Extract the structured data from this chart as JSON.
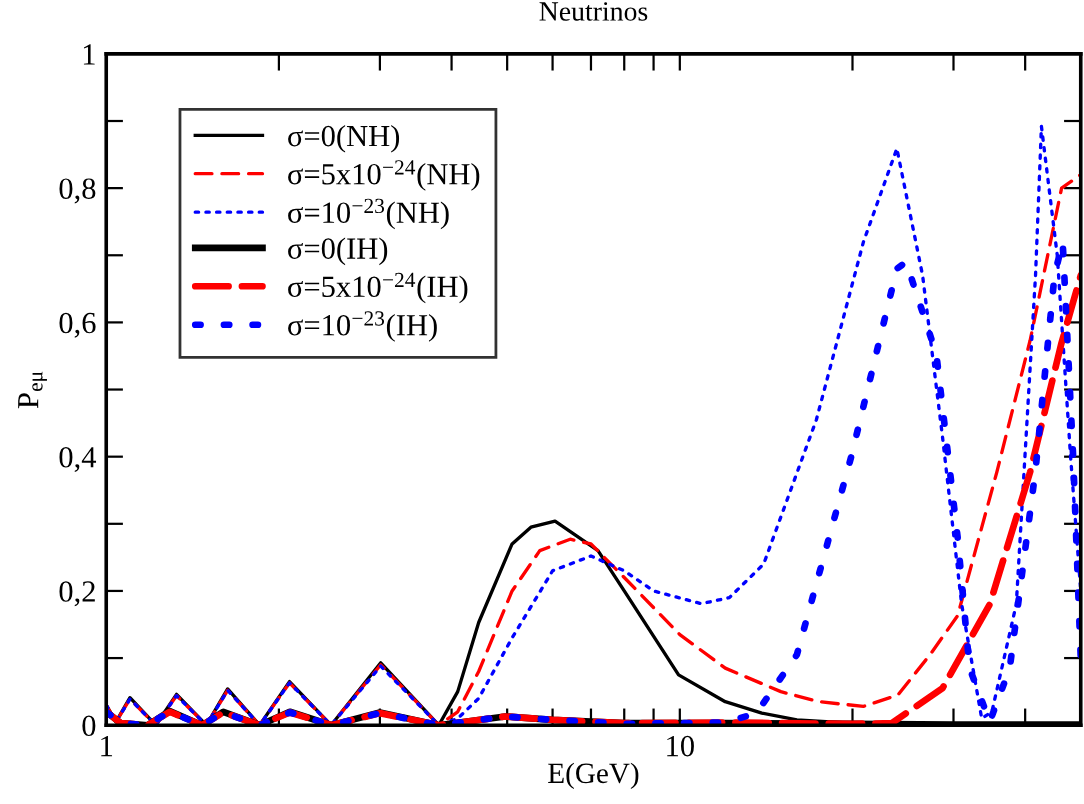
{
  "chart_data": {
    "type": "line",
    "title": "Neutrinos",
    "xlabel": "E(GeV)",
    "ylabel": "P$_{eμ}$",
    "log": "x",
    "xlim": [
      1,
      50
    ],
    "ylim": [
      0,
      1
    ],
    "xticks": [
      1,
      {
        "value": 2,
        "label": null
      },
      {
        "value": 3,
        "label": null
      },
      {
        "value": 4,
        "label": null
      },
      {
        "value": 5,
        "label": null
      },
      {
        "value": 6,
        "label": null
      },
      {
        "value": 7,
        "label": null
      },
      {
        "value": 8,
        "label": null
      },
      {
        "value": 9,
        "label": null
      },
      10,
      {
        "value": 20,
        "label": null
      },
      {
        "value": 30,
        "label": null
      },
      {
        "value": 40,
        "label": null
      }
    ],
    "yticks": [
      0,
      {
        "value": 0.1,
        "label": null
      },
      {
        "value": 0.2,
        "label": "0,2"
      },
      {
        "value": 0.3,
        "label": null
      },
      {
        "value": 0.4,
        "label": "0,4"
      },
      {
        "value": 0.5,
        "label": null
      },
      {
        "value": 0.6,
        "label": "0,6"
      },
      {
        "value": 0.7,
        "label": null
      },
      {
        "value": 0.8,
        "label": "0,8"
      },
      {
        "value": 0.9,
        "label": null
      },
      1
    ],
    "grid": false,
    "legend": "top left",
    "marker": "none",
    "series": [
      {
        "name": "σ=0(NH)",
        "color": "#000000",
        "line_style": "solid",
        "x": [
          1,
          1.04,
          1.1,
          1.22,
          1.326,
          1.495,
          1.628,
          1.851,
          2.087,
          2.466,
          3.01,
          3.8,
          4.1,
          4.46,
          5.1,
          5.5,
          6.06,
          7.2,
          8,
          9.95,
          12,
          13.9,
          16,
          19.9,
          30,
          50
        ],
        "values": [
          0.03,
          0.005,
          0.041,
          0,
          0.046,
          0,
          0.054,
          0,
          0.065,
          0,
          0.093,
          0,
          0.05,
          0.153,
          0.27,
          0.295,
          0.304,
          0.26,
          0.2,
          0.075,
          0.035,
          0.018,
          0.008,
          0.003,
          0.001,
          0.001
        ]
      },
      {
        "name": "σ=5x10$^{−24}$(NH)",
        "color": "#ff0000",
        "line_style": "dashed",
        "x": [
          1,
          1.04,
          1.1,
          1.22,
          1.326,
          1.495,
          1.628,
          1.851,
          2.087,
          2.466,
          3.01,
          3.8,
          4.1,
          4.46,
          5.1,
          5.7,
          6.44,
          7,
          8,
          10,
          12,
          15,
          17.5,
          20.9,
          24,
          27.3,
          30.5,
          35.7,
          40.8,
          46.3,
          50
        ],
        "values": [
          0.03,
          0.005,
          0.039,
          0,
          0.044,
          0,
          0.052,
          0,
          0.063,
          0,
          0.09,
          0,
          0.02,
          0.08,
          0.2,
          0.26,
          0.277,
          0.27,
          0.22,
          0.135,
          0.085,
          0.05,
          0.035,
          0.028,
          0.045,
          0.105,
          0.163,
          0.377,
          0.573,
          0.8,
          0.82
        ]
      },
      {
        "name": "σ=10$^{−23}$(NH)",
        "color": "#0000ff",
        "line_style": "dotted",
        "x": [
          1,
          1.04,
          1.1,
          1.22,
          1.326,
          1.495,
          1.628,
          1.851,
          2.087,
          2.466,
          3.01,
          3.8,
          4.1,
          4.46,
          5.1,
          6,
          7,
          8,
          9,
          10.9,
          12.2,
          14,
          17.3,
          20.9,
          23.9,
          26.5,
          28.7,
          31,
          33.6,
          35,
          38.6,
          41.7,
          42.7,
          45.5,
          48,
          50
        ],
        "values": [
          0.03,
          0.005,
          0.039,
          0,
          0.044,
          0,
          0.052,
          0,
          0.063,
          0,
          0.088,
          0,
          0.01,
          0.04,
          0.13,
          0.23,
          0.252,
          0.23,
          0.2,
          0.181,
          0.19,
          0.24,
          0.455,
          0.72,
          0.859,
          0.67,
          0.43,
          0.18,
          0.01,
          0.02,
          0.18,
          0.67,
          0.892,
          0.7,
          0.4,
          0.2
        ]
      },
      {
        "name": "σ=0(IH)",
        "color": "#000000",
        "line_style": "solid",
        "x": [
          1,
          1.06,
          1.18,
          1.29,
          1.47,
          1.6,
          1.85,
          2.09,
          2.47,
          3.0,
          3.8,
          4.96,
          6,
          8,
          12,
          20,
          30,
          50
        ],
        "values": [
          0.02,
          0.003,
          0,
          0.021,
          0,
          0.02,
          0,
          0.02,
          0,
          0.019,
          0,
          0.013,
          0.008,
          0.003,
          0.003,
          0.002,
          0.001,
          0.001
        ]
      },
      {
        "name": "σ=5x10$^{−24}$(IH)",
        "color": "#ff0000",
        "line_style": "dashed",
        "x": [
          1,
          1.06,
          1.18,
          1.29,
          1.47,
          1.6,
          1.85,
          2.09,
          2.47,
          3.0,
          3.8,
          4.96,
          6,
          8,
          12,
          20,
          23.4,
          28.7,
          34.7,
          40.8,
          46.3,
          50
        ],
        "values": [
          0.02,
          0.003,
          0,
          0.02,
          0,
          0.019,
          0,
          0.019,
          0,
          0.018,
          0,
          0.013,
          0.008,
          0.003,
          0.004,
          0.002,
          0.003,
          0.055,
          0.18,
          0.377,
          0.57,
          0.67
        ]
      },
      {
        "name": "σ=10$^{−23}$(IH)",
        "color": "#0000ff",
        "line_style": "dotted",
        "x": [
          1,
          1.06,
          1.18,
          1.29,
          1.47,
          1.6,
          1.85,
          2.09,
          2.47,
          3.0,
          3.8,
          4.96,
          6,
          8,
          12,
          13.6,
          16,
          19.9,
          23.9,
          24.8,
          28,
          30.5,
          32,
          34.7,
          37.6,
          41.7,
          45,
          46.5,
          48.5,
          50
        ],
        "values": [
          0.02,
          0.003,
          0,
          0.02,
          0,
          0.019,
          0,
          0.019,
          0,
          0.018,
          0,
          0.013,
          0.008,
          0.002,
          0.004,
          0.018,
          0.105,
          0.4,
          0.68,
          0.69,
          0.553,
          0.28,
          0.085,
          0.005,
          0.085,
          0.38,
          0.67,
          0.72,
          0.4,
          0.1
        ]
      }
    ]
  }
}
